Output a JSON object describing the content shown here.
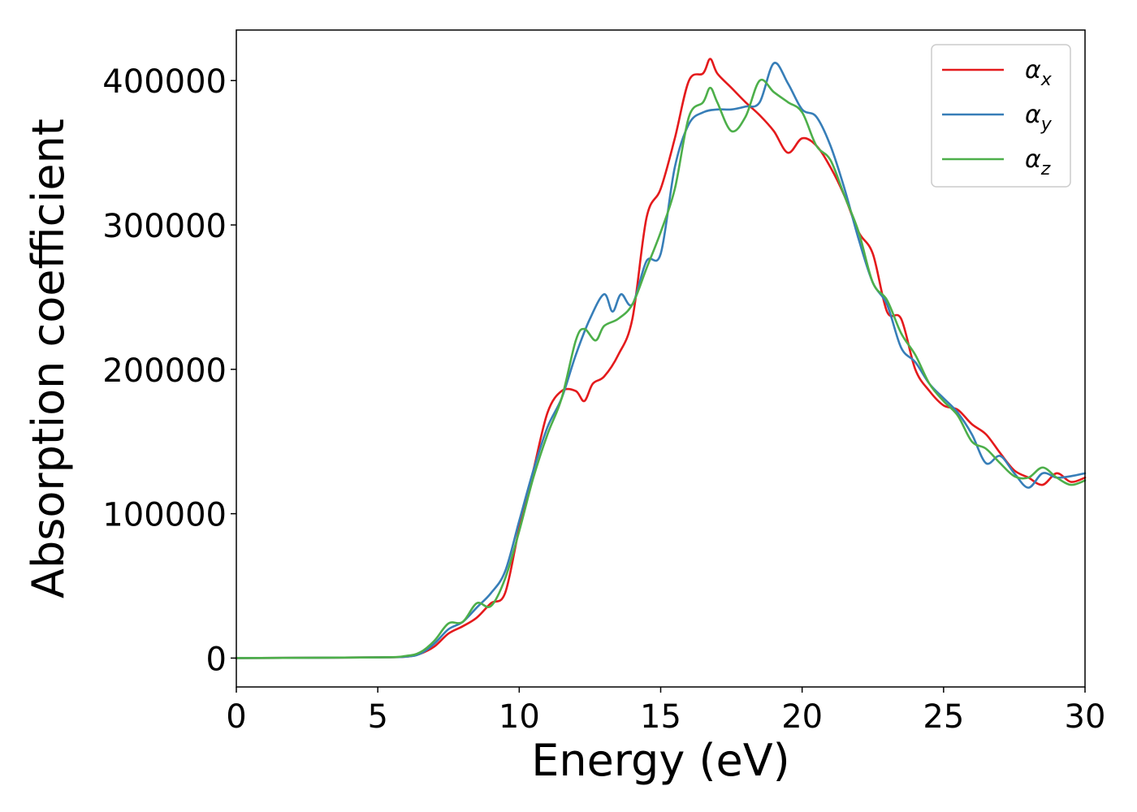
{
  "chart_data": {
    "type": "line",
    "title": "",
    "xlabel": "Energy (eV)",
    "ylabel": "Absorption coefficient",
    "xlim": [
      0,
      30
    ],
    "ylim": [
      -20000,
      435000
    ],
    "xticks": [
      0,
      5,
      10,
      15,
      20,
      25,
      30
    ],
    "yticks": [
      0,
      100000,
      200000,
      300000,
      400000
    ],
    "xtick_labels": [
      "0",
      "5",
      "10",
      "15",
      "20",
      "25",
      "30"
    ],
    "ytick_labels": [
      "0",
      "100000",
      "200000",
      "300000",
      "400000"
    ],
    "grid": false,
    "legend_position": "top-right",
    "series": [
      {
        "name": "αx",
        "label_base": "α",
        "label_sub": "x",
        "color": "#e41a1c",
        "x": [
          0,
          5,
          6,
          6.5,
          7,
          7.5,
          8,
          8.5,
          9,
          9.5,
          10,
          10.5,
          11,
          11.5,
          12,
          12.3,
          12.6,
          13,
          13.5,
          14,
          14.5,
          15,
          15.5,
          16,
          16.5,
          16.75,
          17,
          17.5,
          18,
          18.5,
          19,
          19.5,
          20,
          20.5,
          21,
          21.5,
          22,
          22.5,
          23,
          23.5,
          24,
          24.5,
          25,
          25.5,
          26,
          26.5,
          27,
          27.5,
          28,
          28.5,
          29,
          29.5,
          30
        ],
        "values": [
          0,
          500,
          1000,
          3000,
          8000,
          17000,
          22000,
          28000,
          38000,
          45000,
          90000,
          130000,
          170000,
          185000,
          185000,
          178000,
          190000,
          195000,
          210000,
          235000,
          305000,
          325000,
          360000,
          400000,
          405000,
          415000,
          405000,
          395000,
          385000,
          376000,
          365000,
          350000,
          360000,
          355000,
          340000,
          320000,
          295000,
          280000,
          240000,
          235000,
          200000,
          185000,
          175000,
          172000,
          162000,
          155000,
          142000,
          130000,
          125000,
          120000,
          128000,
          122000,
          125000
        ]
      },
      {
        "name": "αy",
        "label_base": "α",
        "label_sub": "y",
        "color": "#377eb8",
        "x": [
          0,
          5,
          6,
          6.5,
          7,
          7.5,
          8,
          8.5,
          9,
          9.5,
          10,
          10.5,
          11,
          11.5,
          12,
          12.5,
          13,
          13.3,
          13.6,
          14,
          14.5,
          15,
          15.5,
          16,
          16.5,
          17,
          17.5,
          18,
          18.5,
          19,
          19.5,
          20,
          20.5,
          21,
          21.5,
          22,
          22.5,
          23,
          23.5,
          24,
          24.5,
          25,
          25.5,
          26,
          26.5,
          27,
          27.5,
          28,
          28.5,
          29,
          29.5,
          30
        ],
        "values": [
          0,
          500,
          1000,
          3000,
          10000,
          20000,
          25000,
          35000,
          45000,
          60000,
          95000,
          130000,
          160000,
          180000,
          210000,
          235000,
          252000,
          240000,
          252000,
          245000,
          275000,
          280000,
          340000,
          370000,
          378000,
          380000,
          380000,
          382000,
          385000,
          412000,
          398000,
          380000,
          375000,
          355000,
          325000,
          290000,
          260000,
          245000,
          215000,
          205000,
          190000,
          180000,
          170000,
          155000,
          135000,
          140000,
          128000,
          118000,
          128000,
          125000,
          126000,
          128000
        ]
      },
      {
        "name": "αz",
        "label_base": "α",
        "label_sub": "z",
        "color": "#4daf4a",
        "x": [
          0,
          5,
          6,
          6.5,
          7,
          7.5,
          8,
          8.5,
          9,
          9.5,
          10,
          10.5,
          11,
          11.5,
          12,
          12.3,
          12.7,
          13,
          13.5,
          14,
          14.5,
          15,
          15.5,
          16,
          16.5,
          16.75,
          17,
          17.5,
          18,
          18.5,
          19,
          19.5,
          20,
          20.5,
          21,
          21.5,
          22,
          22.5,
          23,
          23.5,
          24,
          24.5,
          25,
          25.5,
          26,
          26.5,
          27,
          27.5,
          28,
          28.5,
          29,
          29.5,
          30
        ],
        "values": [
          0,
          500,
          1500,
          4000,
          12000,
          24000,
          25000,
          38000,
          36000,
          55000,
          88000,
          125000,
          155000,
          180000,
          220000,
          228000,
          220000,
          230000,
          235000,
          245000,
          270000,
          295000,
          325000,
          375000,
          385000,
          395000,
          385000,
          365000,
          375000,
          400000,
          392000,
          385000,
          378000,
          355000,
          345000,
          320000,
          295000,
          260000,
          248000,
          225000,
          210000,
          190000,
          178000,
          168000,
          150000,
          145000,
          135000,
          126000,
          125000,
          132000,
          125000,
          120000,
          123000
        ]
      }
    ]
  }
}
